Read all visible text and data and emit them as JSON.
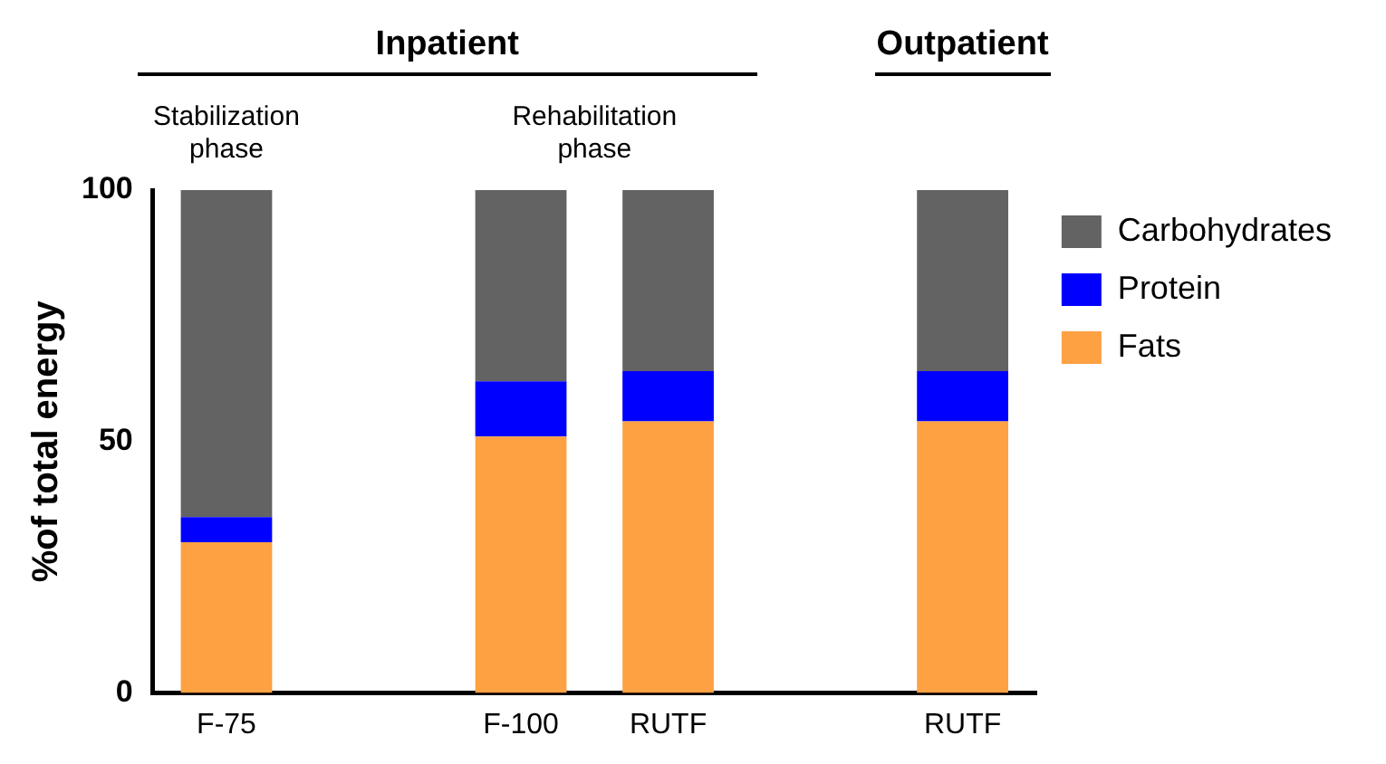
{
  "chart_data": {
    "type": "bar",
    "stacked": true,
    "ylabel": "%of total energy",
    "categories": [
      "F-75",
      null,
      "F-100",
      "RUTF",
      null,
      "RUTF"
    ],
    "series": [
      {
        "name": "Fats",
        "color": "#fda143",
        "values": [
          30,
          null,
          51,
          54,
          null,
          54
        ]
      },
      {
        "name": "Protein",
        "color": "#0000ff",
        "values": [
          5,
          null,
          11,
          10,
          null,
          10
        ]
      },
      {
        "name": "Carbohydrates",
        "color": "#636363",
        "values": [
          65,
          null,
          38,
          36,
          null,
          36
        ]
      }
    ],
    "ylim": [
      0,
      100
    ],
    "yticks": [
      0,
      50,
      100
    ],
    "grid": false,
    "legend": "right",
    "annotations": [
      "Inpatient",
      "Outpatient",
      "Stabilization phase",
      "Rehabilitation phase"
    ]
  }
}
